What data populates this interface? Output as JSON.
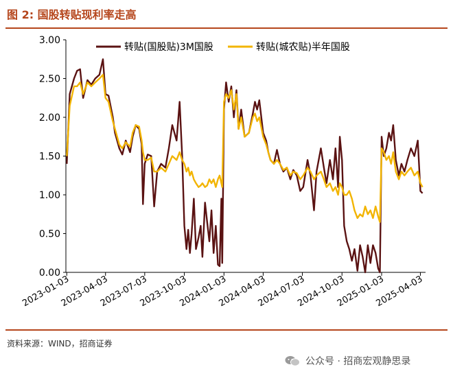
{
  "header": {
    "title": "图 2:  国股转贴现利率走高"
  },
  "footer": {
    "source": "资料来源：WIND，招商证券",
    "watermark": "公众号 · 招商宏观静思录"
  },
  "colors": {
    "accent": "#b5451b",
    "series1": "#5a1212",
    "series2": "#f2b400"
  },
  "chart_data": {
    "type": "line",
    "title": "",
    "xlabel": "",
    "ylabel": "",
    "ylim": [
      0,
      3.0
    ],
    "yticks": [
      "0.00",
      "0.50",
      "1.00",
      "1.50",
      "2.00",
      "2.50",
      "3.00"
    ],
    "xlim": [
      "2023-01-01",
      "2025-04-15"
    ],
    "xticks": [
      "2023-01-03",
      "2023-04-03",
      "2023-07-03",
      "2023-10-03",
      "2024-01-03",
      "2024-04-03",
      "2024-07-03",
      "2024-10-03",
      "2025-01-03",
      "2025-04-03"
    ],
    "grid": false,
    "legend": "top",
    "series": [
      {
        "name": "转贴(国股贴)3M国股",
        "color": "#5a1212",
        "points": [
          [
            "2023-01-03",
            1.4
          ],
          [
            "2023-01-10",
            2.3
          ],
          [
            "2023-01-20",
            2.5
          ],
          [
            "2023-01-27",
            2.6
          ],
          [
            "2023-02-03",
            2.62
          ],
          [
            "2023-02-10",
            2.25
          ],
          [
            "2023-02-20",
            2.48
          ],
          [
            "2023-03-01",
            2.42
          ],
          [
            "2023-03-10",
            2.5
          ],
          [
            "2023-03-20",
            2.55
          ],
          [
            "2023-03-28",
            2.75
          ],
          [
            "2023-04-03",
            2.3
          ],
          [
            "2023-04-10",
            2.28
          ],
          [
            "2023-04-20",
            2.0
          ],
          [
            "2023-04-25",
            1.8
          ],
          [
            "2023-05-05",
            1.6
          ],
          [
            "2023-05-12",
            1.52
          ],
          [
            "2023-05-20",
            1.7
          ],
          [
            "2023-05-30",
            1.55
          ],
          [
            "2023-06-05",
            1.75
          ],
          [
            "2023-06-12",
            1.9
          ],
          [
            "2023-06-20",
            1.85
          ],
          [
            "2023-06-26",
            1.65
          ],
          [
            "2023-06-29",
            0.88
          ],
          [
            "2023-07-03",
            1.4
          ],
          [
            "2023-07-10",
            1.52
          ],
          [
            "2023-07-18",
            1.5
          ],
          [
            "2023-07-25",
            0.85
          ],
          [
            "2023-08-01",
            1.3
          ],
          [
            "2023-08-10",
            1.4
          ],
          [
            "2023-08-20",
            1.35
          ],
          [
            "2023-08-28",
            1.6
          ],
          [
            "2023-09-05",
            1.9
          ],
          [
            "2023-09-15",
            1.7
          ],
          [
            "2023-09-22",
            2.2
          ],
          [
            "2023-09-28",
            1.5
          ],
          [
            "2023-10-03",
            0.6
          ],
          [
            "2023-10-08",
            0.3
          ],
          [
            "2023-10-12",
            0.55
          ],
          [
            "2023-10-16",
            0.25
          ],
          [
            "2023-10-20",
            0.5
          ],
          [
            "2023-10-25",
            0.95
          ],
          [
            "2023-10-30",
            0.3
          ],
          [
            "2023-11-05",
            0.45
          ],
          [
            "2023-11-10",
            0.6
          ],
          [
            "2023-11-14",
            0.2
          ],
          [
            "2023-11-20",
            0.9
          ],
          [
            "2023-11-25",
            0.65
          ],
          [
            "2023-11-30",
            0.4
          ],
          [
            "2023-12-05",
            0.8
          ],
          [
            "2023-12-10",
            0.25
          ],
          [
            "2023-12-15",
            0.6
          ],
          [
            "2023-12-20",
            0.1
          ],
          [
            "2023-12-24",
            0.08
          ],
          [
            "2023-12-28",
            0.95
          ],
          [
            "2023-12-30",
            0.12
          ],
          [
            "2024-01-03",
            2.1
          ],
          [
            "2024-01-08",
            2.45
          ],
          [
            "2024-01-14",
            2.2
          ],
          [
            "2024-01-20",
            2.4
          ],
          [
            "2024-01-26",
            2.0
          ],
          [
            "2024-02-01",
            2.35
          ],
          [
            "2024-02-06",
            1.85
          ],
          [
            "2024-02-12",
            2.1
          ],
          [
            "2024-02-20",
            1.75
          ],
          [
            "2024-03-01",
            1.8
          ],
          [
            "2024-03-10",
            2.05
          ],
          [
            "2024-03-15",
            2.2
          ],
          [
            "2024-03-20",
            2.1
          ],
          [
            "2024-03-25",
            2.22
          ],
          [
            "2024-04-03",
            1.8
          ],
          [
            "2024-04-10",
            1.7
          ],
          [
            "2024-04-15",
            1.55
          ],
          [
            "2024-04-20",
            1.45
          ],
          [
            "2024-04-28",
            1.4
          ],
          [
            "2024-05-05",
            1.58
          ],
          [
            "2024-05-12",
            1.4
          ],
          [
            "2024-05-20",
            1.3
          ],
          [
            "2024-05-28",
            1.35
          ],
          [
            "2024-06-05",
            1.2
          ],
          [
            "2024-06-12",
            1.32
          ],
          [
            "2024-06-20",
            1.25
          ],
          [
            "2024-06-28",
            1.05
          ],
          [
            "2024-07-05",
            1.1
          ],
          [
            "2024-07-15",
            1.45
          ],
          [
            "2024-07-22",
            1.25
          ],
          [
            "2024-07-30",
            0.8
          ],
          [
            "2024-08-05",
            1.3
          ],
          [
            "2024-08-15",
            1.6
          ],
          [
            "2024-08-22",
            1.35
          ],
          [
            "2024-08-28",
            1.15
          ],
          [
            "2024-09-05",
            1.45
          ],
          [
            "2024-09-12",
            1.2
          ],
          [
            "2024-09-18",
            1.6
          ],
          [
            "2024-09-24",
            1.1
          ],
          [
            "2024-09-28",
            1.75
          ],
          [
            "2024-10-03",
            1.45
          ],
          [
            "2024-10-08",
            0.6
          ],
          [
            "2024-10-14",
            0.4
          ],
          [
            "2024-10-20",
            0.3
          ],
          [
            "2024-10-26",
            0.15
          ],
          [
            "2024-11-01",
            0.3
          ],
          [
            "2024-11-08",
            0.02
          ],
          [
            "2024-11-14",
            0.35
          ],
          [
            "2024-11-20",
            0.2
          ],
          [
            "2024-11-26",
            0.0
          ],
          [
            "2024-12-02",
            0.35
          ],
          [
            "2024-12-08",
            0.12
          ],
          [
            "2024-12-14",
            0.35
          ],
          [
            "2024-12-20",
            0.25
          ],
          [
            "2024-12-26",
            0.05
          ],
          [
            "2024-12-30",
            0.0
          ],
          [
            "2025-01-03",
            1.75
          ],
          [
            "2025-01-08",
            1.5
          ],
          [
            "2025-01-14",
            1.6
          ],
          [
            "2025-01-20",
            1.8
          ],
          [
            "2025-01-25",
            1.7
          ],
          [
            "2025-01-30",
            1.9
          ],
          [
            "2025-02-05",
            1.45
          ],
          [
            "2025-02-12",
            1.25
          ],
          [
            "2025-02-18",
            1.4
          ],
          [
            "2025-02-25",
            1.3
          ],
          [
            "2025-03-04",
            1.45
          ],
          [
            "2025-03-12",
            1.6
          ],
          [
            "2025-03-20",
            1.5
          ],
          [
            "2025-03-28",
            1.7
          ],
          [
            "2025-04-03",
            1.05
          ],
          [
            "2025-04-08",
            1.02
          ]
        ]
      },
      {
        "name": "转贴(城农贴)半年国股",
        "color": "#f2b400",
        "points": [
          [
            "2023-01-03",
            1.5
          ],
          [
            "2023-01-10",
            2.15
          ],
          [
            "2023-01-20",
            2.4
          ],
          [
            "2023-01-27",
            2.4
          ],
          [
            "2023-02-03",
            2.45
          ],
          [
            "2023-02-10",
            2.3
          ],
          [
            "2023-02-20",
            2.45
          ],
          [
            "2023-03-01",
            2.4
          ],
          [
            "2023-03-10",
            2.45
          ],
          [
            "2023-03-20",
            2.5
          ],
          [
            "2023-03-28",
            2.55
          ],
          [
            "2023-04-03",
            2.25
          ],
          [
            "2023-04-10",
            2.2
          ],
          [
            "2023-04-20",
            1.95
          ],
          [
            "2023-04-25",
            1.85
          ],
          [
            "2023-05-05",
            1.65
          ],
          [
            "2023-05-12",
            1.6
          ],
          [
            "2023-05-20",
            1.68
          ],
          [
            "2023-05-30",
            1.62
          ],
          [
            "2023-06-05",
            1.8
          ],
          [
            "2023-06-12",
            1.9
          ],
          [
            "2023-06-20",
            1.88
          ],
          [
            "2023-06-26",
            1.7
          ],
          [
            "2023-06-29",
            1.55
          ],
          [
            "2023-07-03",
            1.45
          ],
          [
            "2023-07-10",
            1.45
          ],
          [
            "2023-07-18",
            1.48
          ],
          [
            "2023-07-25",
            1.3
          ],
          [
            "2023-08-01",
            1.3
          ],
          [
            "2023-08-10",
            1.35
          ],
          [
            "2023-08-20",
            1.3
          ],
          [
            "2023-08-28",
            1.4
          ],
          [
            "2023-09-05",
            1.5
          ],
          [
            "2023-09-15",
            1.45
          ],
          [
            "2023-09-22",
            1.55
          ],
          [
            "2023-09-28",
            1.45
          ],
          [
            "2023-10-03",
            1.4
          ],
          [
            "2023-10-08",
            1.3
          ],
          [
            "2023-10-12",
            1.35
          ],
          [
            "2023-10-16",
            1.25
          ],
          [
            "2023-10-20",
            1.3
          ],
          [
            "2023-10-25",
            1.2
          ],
          [
            "2023-10-30",
            1.15
          ],
          [
            "2023-11-05",
            1.1
          ],
          [
            "2023-11-10",
            1.12
          ],
          [
            "2023-11-14",
            1.15
          ],
          [
            "2023-11-20",
            1.1
          ],
          [
            "2023-11-25",
            1.12
          ],
          [
            "2023-11-30",
            1.2
          ],
          [
            "2023-12-05",
            1.15
          ],
          [
            "2023-12-10",
            1.2
          ],
          [
            "2023-12-15",
            1.1
          ],
          [
            "2023-12-20",
            1.2
          ],
          [
            "2023-12-24",
            1.25
          ],
          [
            "2023-12-28",
            1.15
          ],
          [
            "2023-12-30",
            1.1
          ],
          [
            "2024-01-03",
            2.2
          ],
          [
            "2024-01-08",
            2.3
          ],
          [
            "2024-01-14",
            2.25
          ],
          [
            "2024-01-20",
            2.35
          ],
          [
            "2024-01-26",
            2.1
          ],
          [
            "2024-02-01",
            2.3
          ],
          [
            "2024-02-06",
            1.85
          ],
          [
            "2024-02-12",
            2.0
          ],
          [
            "2024-02-20",
            1.75
          ],
          [
            "2024-03-01",
            1.8
          ],
          [
            "2024-03-10",
            2.0
          ],
          [
            "2024-03-15",
            2.05
          ],
          [
            "2024-03-20",
            1.95
          ],
          [
            "2024-03-25",
            2.0
          ],
          [
            "2024-04-03",
            1.75
          ],
          [
            "2024-04-10",
            1.65
          ],
          [
            "2024-04-15",
            1.55
          ],
          [
            "2024-04-20",
            1.45
          ],
          [
            "2024-04-28",
            1.4
          ],
          [
            "2024-05-05",
            1.45
          ],
          [
            "2024-05-12",
            1.4
          ],
          [
            "2024-05-20",
            1.32
          ],
          [
            "2024-05-28",
            1.35
          ],
          [
            "2024-06-05",
            1.25
          ],
          [
            "2024-06-12",
            1.3
          ],
          [
            "2024-06-20",
            1.28
          ],
          [
            "2024-06-28",
            1.2
          ],
          [
            "2024-07-05",
            1.25
          ],
          [
            "2024-07-15",
            1.35
          ],
          [
            "2024-07-22",
            1.3
          ],
          [
            "2024-07-30",
            1.2
          ],
          [
            "2024-08-05",
            1.25
          ],
          [
            "2024-08-15",
            1.3
          ],
          [
            "2024-08-22",
            1.2
          ],
          [
            "2024-08-28",
            1.1
          ],
          [
            "2024-09-05",
            1.15
          ],
          [
            "2024-09-12",
            1.05
          ],
          [
            "2024-09-18",
            1.1
          ],
          [
            "2024-09-24",
            1.0
          ],
          [
            "2024-09-28",
            1.15
          ],
          [
            "2024-10-03",
            1.1
          ],
          [
            "2024-10-08",
            1.0
          ],
          [
            "2024-10-14",
            1.0
          ],
          [
            "2024-10-20",
            1.05
          ],
          [
            "2024-10-26",
            0.95
          ],
          [
            "2024-11-01",
            0.8
          ],
          [
            "2024-11-08",
            0.7
          ],
          [
            "2024-11-14",
            0.75
          ],
          [
            "2024-11-20",
            0.72
          ],
          [
            "2024-11-26",
            0.85
          ],
          [
            "2024-12-02",
            0.75
          ],
          [
            "2024-12-08",
            0.8
          ],
          [
            "2024-12-14",
            0.7
          ],
          [
            "2024-12-20",
            0.85
          ],
          [
            "2024-12-26",
            0.72
          ],
          [
            "2024-12-30",
            0.65
          ],
          [
            "2025-01-03",
            1.6
          ],
          [
            "2025-01-08",
            1.55
          ],
          [
            "2025-01-14",
            1.45
          ],
          [
            "2025-01-20",
            1.5
          ],
          [
            "2025-01-25",
            1.4
          ],
          [
            "2025-01-30",
            1.55
          ],
          [
            "2025-02-05",
            1.3
          ],
          [
            "2025-02-12",
            1.2
          ],
          [
            "2025-02-18",
            1.3
          ],
          [
            "2025-02-25",
            1.25
          ],
          [
            "2025-03-04",
            1.3
          ],
          [
            "2025-03-12",
            1.35
          ],
          [
            "2025-03-20",
            1.25
          ],
          [
            "2025-03-28",
            1.3
          ],
          [
            "2025-04-03",
            1.15
          ],
          [
            "2025-04-08",
            1.1
          ]
        ]
      }
    ]
  }
}
